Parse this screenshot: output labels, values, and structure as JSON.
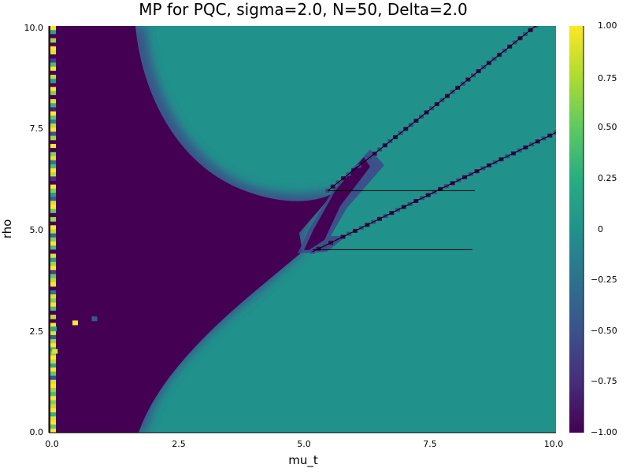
{
  "chart_data": {
    "type": "heatmap",
    "title": "MP for PQC, sigma=2.0, N=50, Delta=2.0",
    "xlabel": "mu_t",
    "ylabel": "rho",
    "xlim": [
      0.0,
      10.0
    ],
    "ylim": [
      0.0,
      10.0
    ],
    "x_ticks": [
      "0.0",
      "2.5",
      "5.0",
      "7.5",
      "10.0"
    ],
    "y_ticks": [
      "0.0",
      "2.5",
      "5.0",
      "7.5",
      "10.0"
    ],
    "colorbar": {
      "colormap": "viridis",
      "range": [
        -1.0,
        1.0
      ],
      "ticks": [
        "1.00",
        "0.75",
        "0.50",
        "0.25",
        "0",
        "−0.25",
        "−0.50",
        "−0.75",
        "−1.00"
      ]
    },
    "grid": false,
    "regions": {
      "dark_region_value": -1.0,
      "light_region_value": 0.0
    },
    "overlay_lines": [
      {
        "x": [
          5.5,
          9.6
        ],
        "y": [
          5.95,
          10.0
        ]
      },
      {
        "x": [
          5.2,
          10.0
        ],
        "y": [
          4.45,
          7.38
        ]
      },
      {
        "x": [
          5.5,
          8.4
        ],
        "y": [
          5.95,
          5.95
        ]
      },
      {
        "x": [
          5.2,
          8.35
        ],
        "y": [
          4.5,
          4.5
        ]
      }
    ],
    "outlier_cells": [
      {
        "x": 0.52,
        "y": 2.7,
        "value": 1.0
      },
      {
        "x": 0.9,
        "y": 2.8,
        "value": -0.45
      },
      {
        "x": 0.12,
        "y": 2.0,
        "value": 0.9
      },
      {
        "x": 0.1,
        "y": 2.55,
        "value": 0.2
      }
    ]
  }
}
